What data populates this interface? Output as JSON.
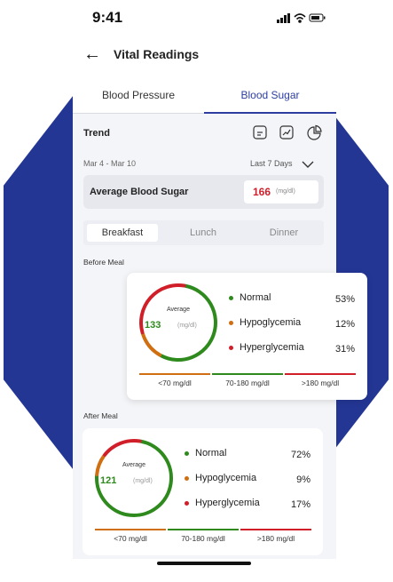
{
  "status_bar": {
    "time": "9:41"
  },
  "header": {
    "back_icon": "arrow-left-icon",
    "title": "Vital Readings"
  },
  "tabs": [
    {
      "label": "Blood Pressure",
      "active": false
    },
    {
      "label": "Blood Sugar",
      "active": true
    }
  ],
  "trend": {
    "label": "Trend",
    "icons": [
      "notes-icon",
      "line-chart-icon",
      "pie-chart-icon"
    ],
    "date_range": "Mar 4 - Mar 10",
    "period": "Last 7 Days"
  },
  "average": {
    "label": "Average Blood Sugar",
    "value": "166",
    "unit": "(mg/dl)"
  },
  "meal_tabs": [
    {
      "label": "Breakfast",
      "active": true
    },
    {
      "label": "Lunch",
      "active": false
    },
    {
      "label": "Dinner",
      "active": false
    }
  ],
  "before_meal": {
    "label": "Before Meal",
    "avg_label": "Average",
    "avg_value": "133",
    "unit": "(mg/dl)",
    "legend": [
      {
        "name": "Normal",
        "pct": "53%",
        "value": 53
      },
      {
        "name": "Hypoglycemia",
        "pct": "12%",
        "value": 12
      },
      {
        "name": "Hyperglycemia",
        "pct": "31%",
        "value": 31
      }
    ],
    "bands": [
      "<70 mg/dl",
      "70-180 mg/dl",
      ">180 mg/dl"
    ]
  },
  "after_meal": {
    "label": "After Meal",
    "avg_label": "Average",
    "avg_value": "121",
    "unit": "(mg/dl)",
    "legend": [
      {
        "name": "Normal",
        "pct": "72%",
        "value": 72
      },
      {
        "name": "Hypoglycemia",
        "pct": "9%",
        "value": 9
      },
      {
        "name": "Hyperglycemia",
        "pct": "17%",
        "value": 17
      }
    ],
    "bands": [
      "<70 mg/dl",
      "70-180 mg/dl",
      ">180 mg/dl"
    ]
  },
  "colors": {
    "accent": "#2d3da0",
    "hexagon": "#233694",
    "normal": "#2f8a1e",
    "hypo": "#cf6f12",
    "hyper": "#d11f2a"
  }
}
